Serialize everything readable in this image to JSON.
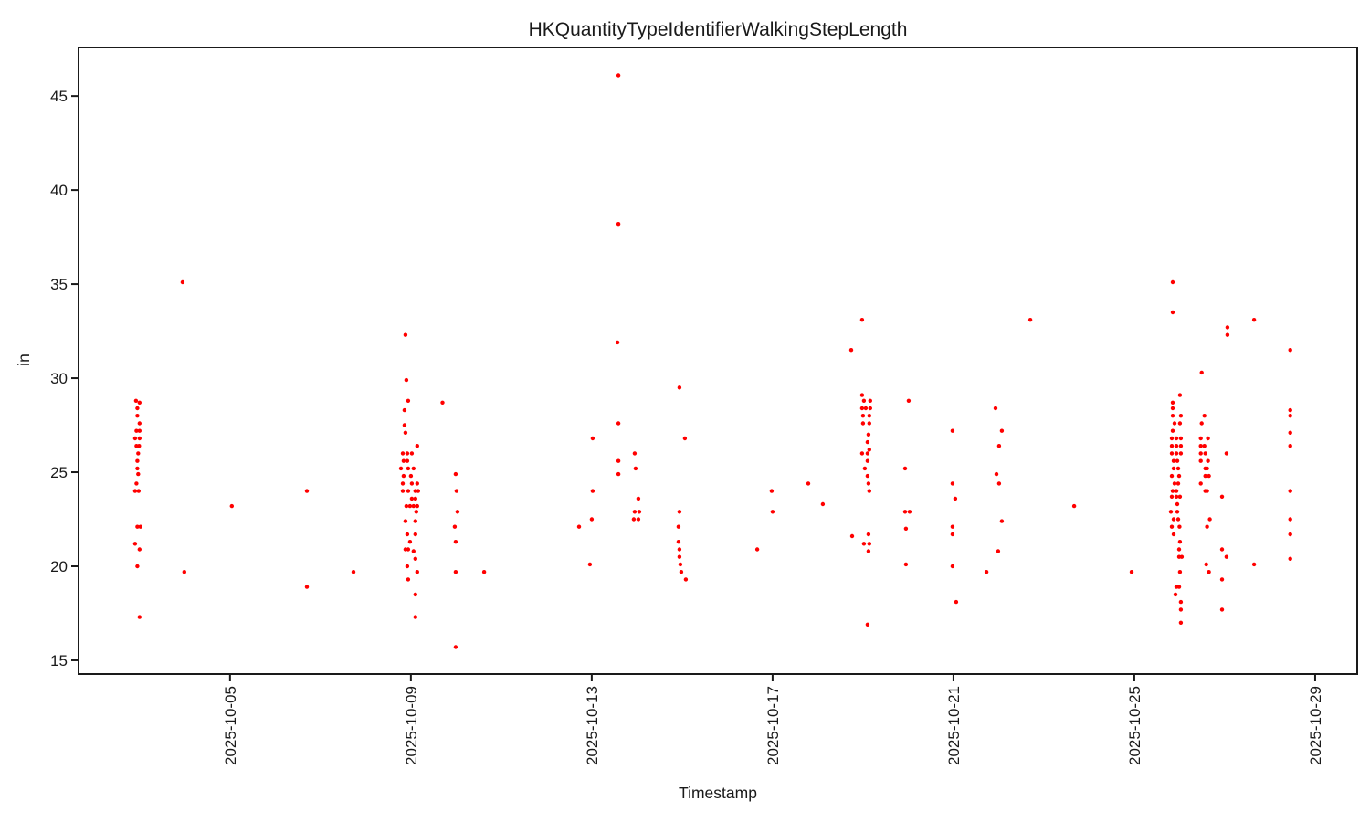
{
  "chart_data": {
    "type": "scatter",
    "title": "HKQuantityTypeIdentifierWalkingStepLength",
    "xlabel": "Timestamp",
    "ylabel": "in",
    "legend": null,
    "grid": false,
    "marker": {
      "color": "#ff0000",
      "radius_px": 2.2
    },
    "axis_color": "#1a1a1a",
    "x_unit": "days_since_2025-10-01",
    "xlim_days": [
      0.65,
      28.93
    ],
    "ylim": [
      14.27,
      47.58
    ],
    "y_ticks": [
      15,
      20,
      25,
      30,
      35,
      40,
      45
    ],
    "x_ticks": [
      {
        "label": "2025-10-05",
        "t": 4
      },
      {
        "label": "2025-10-09",
        "t": 8
      },
      {
        "label": "2025-10-13",
        "t": 12
      },
      {
        "label": "2025-10-17",
        "t": 16
      },
      {
        "label": "2025-10-21",
        "t": 20
      },
      {
        "label": "2025-10-25",
        "t": 24
      },
      {
        "label": "2025-10-29",
        "t": 28
      }
    ],
    "points": [
      [
        1.92,
        28.8
      ],
      [
        2.0,
        28.7
      ],
      [
        1.95,
        28.4
      ],
      [
        1.95,
        28.0
      ],
      [
        2.0,
        27.6
      ],
      [
        1.93,
        27.2
      ],
      [
        2.0,
        27.2
      ],
      [
        1.9,
        26.8
      ],
      [
        2.0,
        26.8
      ],
      [
        1.93,
        26.4
      ],
      [
        1.99,
        26.4
      ],
      [
        1.97,
        26.0
      ],
      [
        1.95,
        25.6
      ],
      [
        1.95,
        25.2
      ],
      [
        1.97,
        24.9
      ],
      [
        1.93,
        24.4
      ],
      [
        1.9,
        24.0
      ],
      [
        1.98,
        24.0
      ],
      [
        1.95,
        22.1
      ],
      [
        2.02,
        22.1
      ],
      [
        1.9,
        21.2
      ],
      [
        2.0,
        20.9
      ],
      [
        1.95,
        20.0
      ],
      [
        2.0,
        17.3
      ],
      [
        2.95,
        35.1
      ],
      [
        2.99,
        19.7
      ],
      [
        4.04,
        23.2
      ],
      [
        5.7,
        24.0
      ],
      [
        5.7,
        18.9
      ],
      [
        6.73,
        19.7
      ],
      [
        7.88,
        32.3
      ],
      [
        7.9,
        29.9
      ],
      [
        7.94,
        28.8
      ],
      [
        7.86,
        28.3
      ],
      [
        7.86,
        27.5
      ],
      [
        7.88,
        27.1
      ],
      [
        8.14,
        26.4
      ],
      [
        7.82,
        26.0
      ],
      [
        7.92,
        26.0
      ],
      [
        8.02,
        26.0
      ],
      [
        7.84,
        25.6
      ],
      [
        7.92,
        25.6
      ],
      [
        7.78,
        25.2
      ],
      [
        7.94,
        25.2
      ],
      [
        8.06,
        25.2
      ],
      [
        7.84,
        24.8
      ],
      [
        8.0,
        24.8
      ],
      [
        7.82,
        24.4
      ],
      [
        8.02,
        24.4
      ],
      [
        8.14,
        24.4
      ],
      [
        7.82,
        24.0
      ],
      [
        7.94,
        24.0
      ],
      [
        8.1,
        24.0
      ],
      [
        8.16,
        24.0
      ],
      [
        8.02,
        23.6
      ],
      [
        8.1,
        23.6
      ],
      [
        7.9,
        23.2
      ],
      [
        7.98,
        23.2
      ],
      [
        8.06,
        23.2
      ],
      [
        8.14,
        23.2
      ],
      [
        8.12,
        22.9
      ],
      [
        7.88,
        22.4
      ],
      [
        8.1,
        22.4
      ],
      [
        7.92,
        21.7
      ],
      [
        8.1,
        21.7
      ],
      [
        7.98,
        21.3
      ],
      [
        7.88,
        20.9
      ],
      [
        7.94,
        20.9
      ],
      [
        8.06,
        20.8
      ],
      [
        8.1,
        20.4
      ],
      [
        7.92,
        20.0
      ],
      [
        8.14,
        19.7
      ],
      [
        7.94,
        19.3
      ],
      [
        8.1,
        18.5
      ],
      [
        8.1,
        17.3
      ],
      [
        8.7,
        28.7
      ],
      [
        8.99,
        24.9
      ],
      [
        9.01,
        24.0
      ],
      [
        9.03,
        22.9
      ],
      [
        8.97,
        22.1
      ],
      [
        8.99,
        21.3
      ],
      [
        8.99,
        19.7
      ],
      [
        8.99,
        15.7
      ],
      [
        9.62,
        19.7
      ],
      [
        11.72,
        22.1
      ],
      [
        11.96,
        20.1
      ],
      [
        12.0,
        22.5
      ],
      [
        12.02,
        26.8
      ],
      [
        12.02,
        24.0
      ],
      [
        12.59,
        46.1
      ],
      [
        12.59,
        38.2
      ],
      [
        12.57,
        31.9
      ],
      [
        12.59,
        27.6
      ],
      [
        12.59,
        25.6
      ],
      [
        12.59,
        24.9
      ],
      [
        12.95,
        26.0
      ],
      [
        12.97,
        25.2
      ],
      [
        13.03,
        23.6
      ],
      [
        12.95,
        22.9
      ],
      [
        13.05,
        22.9
      ],
      [
        12.93,
        22.5
      ],
      [
        13.03,
        22.5
      ],
      [
        13.94,
        29.5
      ],
      [
        14.06,
        26.8
      ],
      [
        13.94,
        22.9
      ],
      [
        13.92,
        22.1
      ],
      [
        13.92,
        21.3
      ],
      [
        13.94,
        20.9
      ],
      [
        13.94,
        20.5
      ],
      [
        13.96,
        20.1
      ],
      [
        13.98,
        19.7
      ],
      [
        14.08,
        19.3
      ],
      [
        15.66,
        20.9
      ],
      [
        15.98,
        24.0
      ],
      [
        16.0,
        22.9
      ],
      [
        16.79,
        24.4
      ],
      [
        17.11,
        23.3
      ],
      [
        17.74,
        31.5
      ],
      [
        17.98,
        33.1
      ],
      [
        17.98,
        29.1
      ],
      [
        18.02,
        28.8
      ],
      [
        18.16,
        28.8
      ],
      [
        17.98,
        28.4
      ],
      [
        18.06,
        28.4
      ],
      [
        18.16,
        28.4
      ],
      [
        18.0,
        28.0
      ],
      [
        18.14,
        28.0
      ],
      [
        18.0,
        27.6
      ],
      [
        18.14,
        27.6
      ],
      [
        18.12,
        27.0
      ],
      [
        18.1,
        26.6
      ],
      [
        18.14,
        26.2
      ],
      [
        17.98,
        26.0
      ],
      [
        18.1,
        26.0
      ],
      [
        18.1,
        25.6
      ],
      [
        18.04,
        25.2
      ],
      [
        18.1,
        24.8
      ],
      [
        18.12,
        24.4
      ],
      [
        18.14,
        24.0
      ],
      [
        18.12,
        21.7
      ],
      [
        17.76,
        21.6
      ],
      [
        18.02,
        21.2
      ],
      [
        18.14,
        21.2
      ],
      [
        18.12,
        20.8
      ],
      [
        18.1,
        16.9
      ],
      [
        19.01,
        28.8
      ],
      [
        18.93,
        25.2
      ],
      [
        18.93,
        22.9
      ],
      [
        19.03,
        22.9
      ],
      [
        18.95,
        22.0
      ],
      [
        18.95,
        20.1
      ],
      [
        19.98,
        27.2
      ],
      [
        19.98,
        24.4
      ],
      [
        20.04,
        23.6
      ],
      [
        19.98,
        22.1
      ],
      [
        19.98,
        21.7
      ],
      [
        19.98,
        20.0
      ],
      [
        20.06,
        18.1
      ],
      [
        20.73,
        19.7
      ],
      [
        20.93,
        28.4
      ],
      [
        21.07,
        27.2
      ],
      [
        21.01,
        26.4
      ],
      [
        20.95,
        24.9
      ],
      [
        21.01,
        24.4
      ],
      [
        21.07,
        22.4
      ],
      [
        20.99,
        20.8
      ],
      [
        21.7,
        33.1
      ],
      [
        22.67,
        23.2
      ],
      [
        23.94,
        19.7
      ],
      [
        24.85,
        35.1
      ],
      [
        24.85,
        33.5
      ],
      [
        25.01,
        29.1
      ],
      [
        24.85,
        28.7
      ],
      [
        24.85,
        28.4
      ],
      [
        24.85,
        28.0
      ],
      [
        25.03,
        28.0
      ],
      [
        24.89,
        27.6
      ],
      [
        25.01,
        27.6
      ],
      [
        24.85,
        27.2
      ],
      [
        24.83,
        26.8
      ],
      [
        24.93,
        26.8
      ],
      [
        25.03,
        26.8
      ],
      [
        24.83,
        26.4
      ],
      [
        24.93,
        26.4
      ],
      [
        25.03,
        26.4
      ],
      [
        24.83,
        26.0
      ],
      [
        24.93,
        26.0
      ],
      [
        25.03,
        26.0
      ],
      [
        24.87,
        25.6
      ],
      [
        24.95,
        25.6
      ],
      [
        24.87,
        25.2
      ],
      [
        24.97,
        25.2
      ],
      [
        24.83,
        24.8
      ],
      [
        24.99,
        24.8
      ],
      [
        24.89,
        24.4
      ],
      [
        24.97,
        24.4
      ],
      [
        24.85,
        24.0
      ],
      [
        24.93,
        24.0
      ],
      [
        24.83,
        23.7
      ],
      [
        24.93,
        23.7
      ],
      [
        25.01,
        23.7
      ],
      [
        24.95,
        23.3
      ],
      [
        24.81,
        22.9
      ],
      [
        24.95,
        22.9
      ],
      [
        24.87,
        22.5
      ],
      [
        24.97,
        22.5
      ],
      [
        24.83,
        22.1
      ],
      [
        25.0,
        22.1
      ],
      [
        24.87,
        21.7
      ],
      [
        25.01,
        21.3
      ],
      [
        24.99,
        20.9
      ],
      [
        24.99,
        20.5
      ],
      [
        25.05,
        20.5
      ],
      [
        25.01,
        19.7
      ],
      [
        24.93,
        18.9
      ],
      [
        24.99,
        18.9
      ],
      [
        24.91,
        18.5
      ],
      [
        25.03,
        18.1
      ],
      [
        25.03,
        17.7
      ],
      [
        25.03,
        17.0
      ],
      [
        25.49,
        30.3
      ],
      [
        25.55,
        28.0
      ],
      [
        25.49,
        27.6
      ],
      [
        25.47,
        26.8
      ],
      [
        25.63,
        26.8
      ],
      [
        25.47,
        26.4
      ],
      [
        25.55,
        26.4
      ],
      [
        25.47,
        26.0
      ],
      [
        25.57,
        26.0
      ],
      [
        25.47,
        25.6
      ],
      [
        25.63,
        25.6
      ],
      [
        25.57,
        25.2
      ],
      [
        25.61,
        25.2
      ],
      [
        25.57,
        24.8
      ],
      [
        25.65,
        24.8
      ],
      [
        25.47,
        24.4
      ],
      [
        25.57,
        24.0
      ],
      [
        25.61,
        24.0
      ],
      [
        25.67,
        22.5
      ],
      [
        25.61,
        22.1
      ],
      [
        25.59,
        20.1
      ],
      [
        25.65,
        19.7
      ],
      [
        26.06,
        32.7
      ],
      [
        26.06,
        32.3
      ],
      [
        26.04,
        26.0
      ],
      [
        25.94,
        23.7
      ],
      [
        25.94,
        20.9
      ],
      [
        26.04,
        20.5
      ],
      [
        25.94,
        19.3
      ],
      [
        25.94,
        17.7
      ],
      [
        26.65,
        33.1
      ],
      [
        26.65,
        20.1
      ],
      [
        27.45,
        31.5
      ],
      [
        27.45,
        28.3
      ],
      [
        27.45,
        28.0
      ],
      [
        27.45,
        27.1
      ],
      [
        27.45,
        26.4
      ],
      [
        27.45,
        24.0
      ],
      [
        27.45,
        22.5
      ],
      [
        27.45,
        21.7
      ],
      [
        27.45,
        20.4
      ]
    ]
  }
}
